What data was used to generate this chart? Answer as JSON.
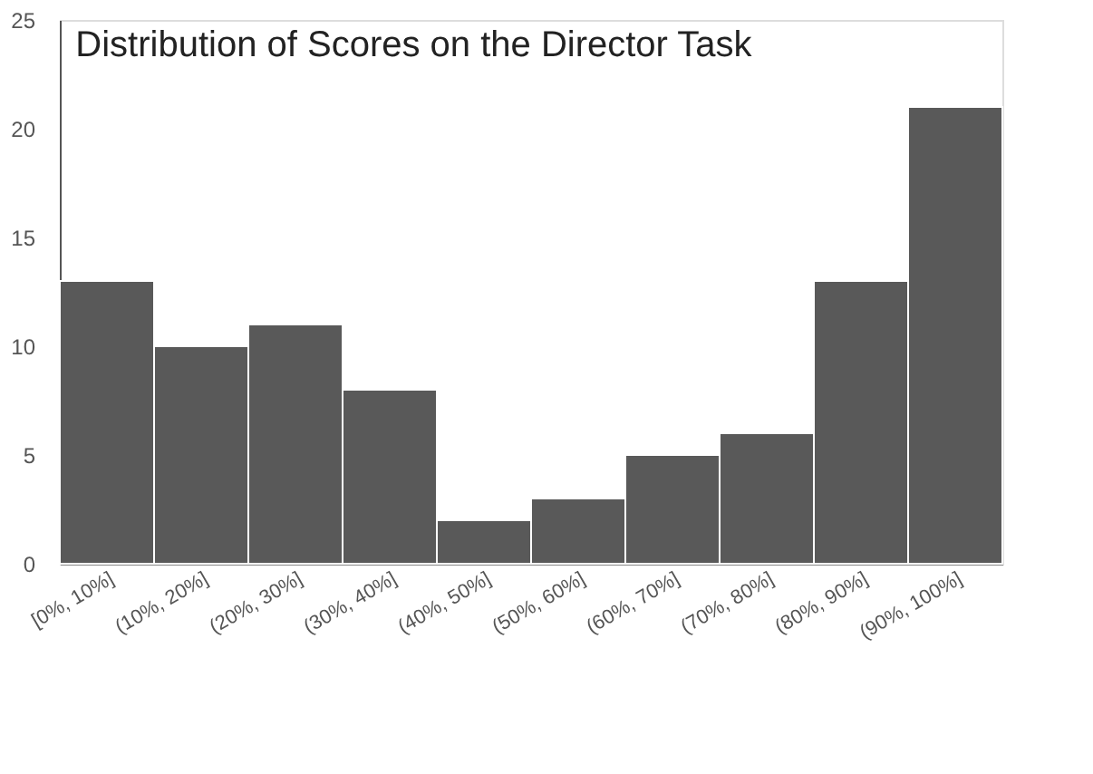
{
  "chart_data": {
    "type": "bar",
    "title": "Distribution of Scores on the Director Task",
    "categories": [
      "[0%, 10%]",
      "(10%, 20%]",
      "(20%, 30%]",
      "(30%, 40%]",
      "(40%, 50%]",
      "(50%, 60%]",
      "(60%, 70%]",
      "(70%, 80%]",
      "(80%, 90%]",
      "(90%, 100%]"
    ],
    "values": [
      13,
      10,
      11,
      8,
      2,
      3,
      5,
      6,
      13,
      21
    ],
    "color": "#595959",
    "ylim": [
      0,
      25
    ],
    "yticks": [
      0,
      5,
      10,
      15,
      20,
      25
    ],
    "grid": false
  }
}
